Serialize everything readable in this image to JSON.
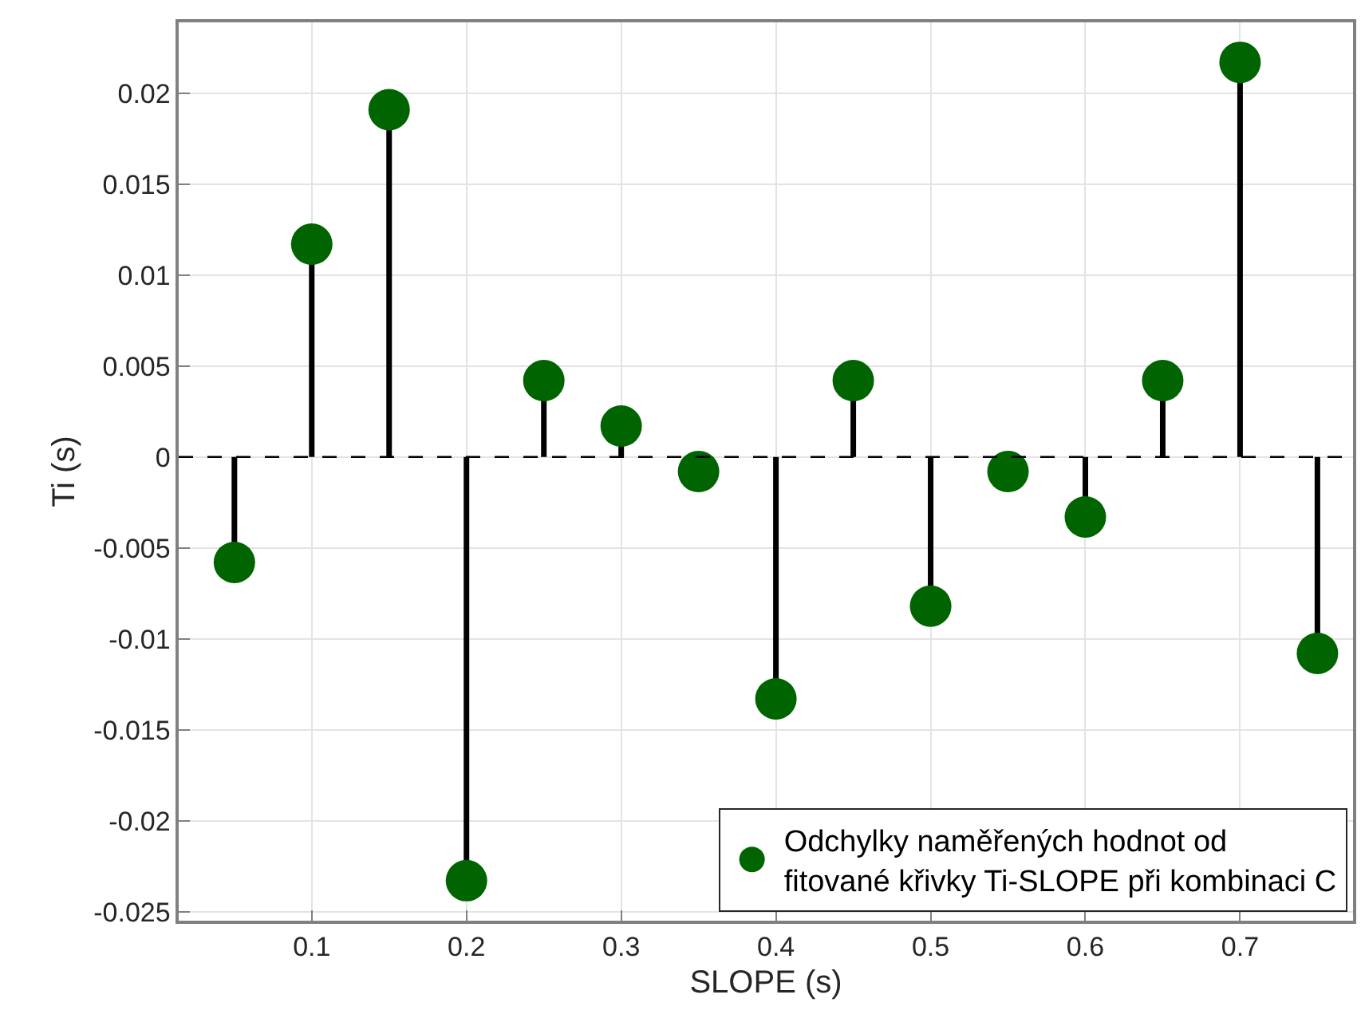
{
  "chart_data": {
    "type": "lollipop",
    "xlabel": "SLOPE (s)",
    "ylabel": "Ti (s)",
    "x": [
      0.05,
      0.1,
      0.15,
      0.2,
      0.25,
      0.3,
      0.35,
      0.4,
      0.45,
      0.5,
      0.55,
      0.6,
      0.65,
      0.7,
      0.75
    ],
    "series": [
      {
        "name": "Odchylky naměřených hodnot od\nfitované křivky Ti-SLOPE při kombinaci C",
        "color": "#006400",
        "values": [
          -0.0058,
          0.0117,
          0.0191,
          -0.0233,
          0.0042,
          0.0017,
          -0.0008,
          -0.0133,
          0.0042,
          -0.0082,
          -0.0008,
          -0.0033,
          0.0042,
          0.0217,
          -0.0108
        ]
      }
    ],
    "xlim": [
      0.014,
      0.773
    ],
    "xticks": [
      0.1,
      0.2,
      0.3,
      0.4,
      0.5,
      0.6,
      0.7
    ],
    "ylim": [
      -0.0255,
      0.0239
    ],
    "yticks": [
      -0.025,
      -0.02,
      -0.015,
      -0.01,
      -0.005,
      0,
      0.005,
      0.01,
      0.015,
      0.02
    ],
    "ref_lines": [
      {
        "axis": "y",
        "value": 0,
        "color": "#000000",
        "line_style": "dashed"
      }
    ],
    "grid": true,
    "legend": "bottom right",
    "marker": "circle"
  }
}
